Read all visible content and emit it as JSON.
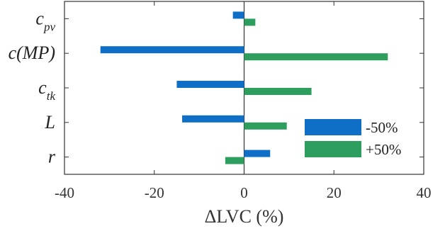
{
  "chart_data": {
    "type": "bar",
    "orientation": "horizontal",
    "categories": [
      {
        "main": "c",
        "sub": "pv"
      },
      {
        "main": "c(MP)",
        "sub": ""
      },
      {
        "main": "c",
        "sub": "tk"
      },
      {
        "main": "L",
        "sub": ""
      },
      {
        "main": "r",
        "sub": ""
      }
    ],
    "series": [
      {
        "name": "-50%",
        "color": "#0f6fc6",
        "values": [
          -2.5,
          -32,
          -15,
          -13.8,
          5.8
        ]
      },
      {
        "name": "+50%",
        "color": "#2e9e5f",
        "values": [
          2.5,
          32,
          15,
          9.5,
          -4.2
        ]
      }
    ],
    "xlabel": "ΔLVC (%)",
    "xlim": [
      -40,
      40
    ],
    "xticks": [
      -40,
      -20,
      0,
      20,
      40
    ],
    "grid": false,
    "legend_position": "bottom-right"
  }
}
